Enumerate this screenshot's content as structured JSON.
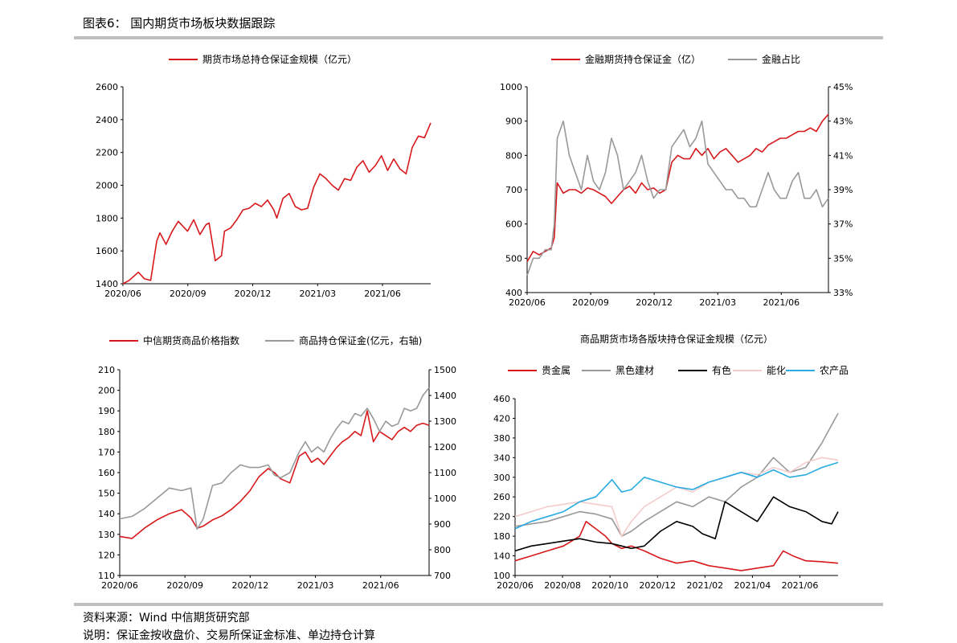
{
  "page": {
    "title": "图表6： 国内期货市场板块数据跟踪",
    "source": "资料来源：Wind 中信期货研究部",
    "note": "说明：保证金按收盘价、交易所保证金标准、单边持仓计算"
  },
  "chart_data": [
    {
      "type": "line",
      "legend_position": "top",
      "x_labels": [
        "2020/06",
        "2020/09",
        "2020/12",
        "2021/03",
        "2021/06"
      ],
      "ylim": [
        1400,
        2600
      ],
      "yticks": [
        "1400",
        "1600",
        "1800",
        "2000",
        "2200",
        "2400",
        "2600"
      ],
      "series": [
        {
          "name": "期货市场总持仓保证金规模（亿元）",
          "color": "#d7191c",
          "x": [
            0,
            0.02,
            0.05,
            0.07,
            0.09,
            0.11,
            0.12,
            0.14,
            0.16,
            0.18,
            0.2,
            0.21,
            0.23,
            0.25,
            0.27,
            0.28,
            0.3,
            0.32,
            0.33,
            0.35,
            0.37,
            0.39,
            0.41,
            0.43,
            0.45,
            0.47,
            0.49,
            0.5,
            0.52,
            0.54,
            0.56,
            0.58,
            0.6,
            0.62,
            0.64,
            0.66,
            0.68,
            0.7,
            0.72,
            0.74,
            0.76,
            0.78,
            0.8,
            0.82,
            0.84,
            0.86,
            0.88,
            0.9,
            0.92,
            0.94,
            0.96,
            0.98,
            1.0
          ],
          "y": [
            1400,
            1420,
            1470,
            1430,
            1420,
            1660,
            1710,
            1640,
            1720,
            1780,
            1740,
            1720,
            1790,
            1700,
            1760,
            1770,
            1540,
            1570,
            1720,
            1740,
            1790,
            1850,
            1860,
            1890,
            1870,
            1910,
            1850,
            1800,
            1920,
            1950,
            1870,
            1850,
            1860,
            1990,
            2070,
            2040,
            2000,
            1970,
            2040,
            2030,
            2110,
            2150,
            2080,
            2120,
            2180,
            2090,
            2160,
            2100,
            2070,
            2230,
            2300,
            2290,
            2380
          ]
        }
      ]
    },
    {
      "type": "line",
      "legend_position": "top",
      "x_labels": [
        "2020/06",
        "2020/09",
        "2020/12",
        "2021/03",
        "2021/06"
      ],
      "ylim": [
        400,
        1000
      ],
      "yticks": [
        "400",
        "500",
        "600",
        "700",
        "800",
        "900",
        "1000"
      ],
      "y2lim": [
        33,
        45
      ],
      "y2ticks": [
        "33%",
        "35%",
        "37%",
        "39%",
        "41%",
        "43%",
        "45%"
      ],
      "series": [
        {
          "name": "金融期货持仓保证金（亿）",
          "color": "#d7191c",
          "axis": "left",
          "x": [
            0,
            0.02,
            0.04,
            0.06,
            0.08,
            0.09,
            0.1,
            0.12,
            0.14,
            0.16,
            0.18,
            0.2,
            0.22,
            0.24,
            0.26,
            0.28,
            0.3,
            0.32,
            0.34,
            0.36,
            0.38,
            0.4,
            0.42,
            0.44,
            0.46,
            0.48,
            0.5,
            0.52,
            0.54,
            0.56,
            0.58,
            0.6,
            0.62,
            0.64,
            0.66,
            0.68,
            0.7,
            0.72,
            0.74,
            0.76,
            0.78,
            0.8,
            0.82,
            0.84,
            0.86,
            0.88,
            0.9,
            0.92,
            0.94,
            0.96,
            0.98,
            1.0
          ],
          "y": [
            490,
            520,
            510,
            520,
            530,
            560,
            720,
            690,
            700,
            700,
            690,
            705,
            700,
            690,
            680,
            660,
            680,
            700,
            710,
            690,
            720,
            700,
            705,
            690,
            700,
            780,
            800,
            790,
            790,
            820,
            800,
            820,
            790,
            810,
            820,
            800,
            780,
            790,
            800,
            820,
            810,
            830,
            840,
            850,
            850,
            860,
            870,
            870,
            880,
            870,
            900,
            920
          ]
        },
        {
          "name": "金融占比",
          "color": "#999999",
          "axis": "right",
          "x": [
            0,
            0.02,
            0.04,
            0.06,
            0.08,
            0.09,
            0.1,
            0.12,
            0.14,
            0.16,
            0.18,
            0.2,
            0.22,
            0.24,
            0.26,
            0.28,
            0.3,
            0.32,
            0.34,
            0.36,
            0.38,
            0.4,
            0.42,
            0.44,
            0.46,
            0.48,
            0.5,
            0.52,
            0.54,
            0.56,
            0.58,
            0.6,
            0.62,
            0.64,
            0.66,
            0.68,
            0.7,
            0.72,
            0.74,
            0.76,
            0.78,
            0.8,
            0.82,
            0.84,
            0.86,
            0.88,
            0.9,
            0.92,
            0.94,
            0.96,
            0.98,
            1.0
          ],
          "y": [
            34,
            35,
            35,
            35.5,
            35.5,
            37,
            42,
            43,
            41,
            40,
            39,
            41,
            39.5,
            39,
            40,
            42,
            41,
            39,
            39.5,
            40,
            41,
            39.5,
            38.5,
            39,
            39,
            41.5,
            42,
            42.5,
            41.5,
            42,
            43,
            40.5,
            40,
            39.5,
            39,
            39,
            38.5,
            38.5,
            38,
            38,
            39,
            40,
            39,
            38.5,
            38.5,
            39.5,
            40,
            38.5,
            38.5,
            39,
            38,
            38.5
          ]
        }
      ]
    },
    {
      "type": "line",
      "legend_position": "top",
      "x_labels": [
        "2020/06",
        "2020/09",
        "2020/12",
        "2021/03",
        "2021/06"
      ],
      "ylim": [
        110,
        210
      ],
      "yticks": [
        "110",
        "120",
        "130",
        "140",
        "150",
        "160",
        "170",
        "180",
        "190",
        "200",
        "210"
      ],
      "y2lim": [
        700,
        1500
      ],
      "y2ticks": [
        "700",
        "800",
        "900",
        "1000",
        "1100",
        "1200",
        "1300",
        "1400",
        "1500"
      ],
      "series": [
        {
          "name": "中信期货商品价格指数",
          "color": "#d7191c",
          "axis": "left",
          "x": [
            0,
            0.04,
            0.08,
            0.12,
            0.16,
            0.2,
            0.23,
            0.25,
            0.27,
            0.3,
            0.33,
            0.36,
            0.39,
            0.42,
            0.45,
            0.48,
            0.5,
            0.52,
            0.55,
            0.58,
            0.6,
            0.62,
            0.64,
            0.66,
            0.68,
            0.7,
            0.72,
            0.74,
            0.76,
            0.78,
            0.8,
            0.82,
            0.84,
            0.86,
            0.88,
            0.9,
            0.92,
            0.94,
            0.96,
            0.98,
            1.0
          ],
          "y": [
            129,
            128,
            133,
            137,
            140,
            142,
            138,
            133,
            134,
            137,
            139,
            142,
            146,
            151,
            158,
            162,
            160,
            157,
            155,
            168,
            170,
            165,
            167,
            164,
            168,
            172,
            175,
            177,
            180,
            178,
            190,
            175,
            180,
            178,
            176,
            180,
            182,
            180,
            183,
            184,
            183
          ]
        },
        {
          "name": "商品持仓保证金(亿元，右轴)",
          "color": "#999999",
          "axis": "right",
          "x": [
            0,
            0.04,
            0.08,
            0.12,
            0.16,
            0.2,
            0.23,
            0.25,
            0.27,
            0.3,
            0.33,
            0.36,
            0.39,
            0.42,
            0.45,
            0.48,
            0.5,
            0.52,
            0.55,
            0.58,
            0.6,
            0.62,
            0.64,
            0.66,
            0.68,
            0.7,
            0.72,
            0.74,
            0.76,
            0.78,
            0.8,
            0.82,
            0.84,
            0.86,
            0.88,
            0.9,
            0.92,
            0.94,
            0.96,
            0.98,
            1.0
          ],
          "y": [
            920,
            930,
            960,
            1000,
            1040,
            1030,
            1040,
            880,
            920,
            1050,
            1060,
            1100,
            1130,
            1120,
            1120,
            1130,
            1090,
            1080,
            1100,
            1180,
            1220,
            1180,
            1200,
            1180,
            1230,
            1270,
            1300,
            1290,
            1330,
            1320,
            1350,
            1310,
            1260,
            1300,
            1280,
            1290,
            1350,
            1340,
            1350,
            1400,
            1430
          ]
        }
      ]
    },
    {
      "type": "line",
      "title": "商品期货市场各版块持仓保证金规模（亿元）",
      "legend_position": "top",
      "x_labels": [
        "2020/06",
        "2020/08",
        "2020/10",
        "2020/12",
        "2021/02",
        "2021/04",
        "2021/06"
      ],
      "ylim": [
        100,
        460
      ],
      "yticks": [
        "100",
        "140",
        "180",
        "220",
        "260",
        "300",
        "340",
        "380",
        "420",
        "460"
      ],
      "series": [
        {
          "name": "贵金属",
          "color": "#d7191c",
          "x": [
            0,
            0.05,
            0.1,
            0.15,
            0.2,
            0.22,
            0.25,
            0.28,
            0.3,
            0.33,
            0.36,
            0.4,
            0.45,
            0.5,
            0.55,
            0.6,
            0.65,
            0.7,
            0.75,
            0.8,
            0.83,
            0.86,
            0.9,
            0.95,
            1.0
          ],
          "y": [
            130,
            140,
            150,
            160,
            180,
            210,
            195,
            180,
            165,
            155,
            160,
            150,
            135,
            125,
            130,
            120,
            115,
            110,
            115,
            120,
            150,
            140,
            130,
            128,
            125
          ]
        },
        {
          "name": "黑色建材",
          "color": "#999999",
          "x": [
            0,
            0.05,
            0.1,
            0.15,
            0.2,
            0.25,
            0.3,
            0.33,
            0.36,
            0.4,
            0.45,
            0.5,
            0.55,
            0.6,
            0.65,
            0.7,
            0.75,
            0.8,
            0.85,
            0.9,
            0.95,
            1.0
          ],
          "y": [
            200,
            205,
            210,
            220,
            230,
            225,
            215,
            180,
            190,
            210,
            230,
            250,
            240,
            260,
            250,
            280,
            300,
            340,
            310,
            320,
            370,
            430
          ]
        },
        {
          "name": "有色",
          "color": "#000000",
          "x": [
            0,
            0.05,
            0.1,
            0.15,
            0.2,
            0.25,
            0.3,
            0.33,
            0.36,
            0.4,
            0.45,
            0.5,
            0.55,
            0.58,
            0.62,
            0.65,
            0.7,
            0.75,
            0.8,
            0.85,
            0.9,
            0.95,
            0.98,
            1.0
          ],
          "y": [
            150,
            160,
            165,
            170,
            175,
            168,
            165,
            160,
            155,
            160,
            190,
            210,
            200,
            185,
            175,
            250,
            230,
            210,
            260,
            240,
            230,
            210,
            205,
            230
          ]
        },
        {
          "name": "能化",
          "color": "#f4cccc",
          "x": [
            0,
            0.05,
            0.1,
            0.15,
            0.2,
            0.25,
            0.3,
            0.33,
            0.36,
            0.4,
            0.45,
            0.5,
            0.55,
            0.6,
            0.65,
            0.7,
            0.75,
            0.8,
            0.85,
            0.9,
            0.95,
            1.0
          ],
          "y": [
            220,
            230,
            240,
            245,
            250,
            245,
            240,
            180,
            210,
            240,
            260,
            280,
            270,
            290,
            300,
            310,
            305,
            320,
            310,
            330,
            340,
            335
          ]
        },
        {
          "name": "农产品",
          "color": "#29abe2",
          "x": [
            0,
            0.05,
            0.1,
            0.15,
            0.2,
            0.25,
            0.3,
            0.33,
            0.36,
            0.4,
            0.45,
            0.5,
            0.55,
            0.6,
            0.65,
            0.7,
            0.75,
            0.8,
            0.85,
            0.9,
            0.95,
            1.0
          ],
          "y": [
            195,
            210,
            220,
            230,
            250,
            260,
            295,
            270,
            275,
            300,
            290,
            280,
            275,
            290,
            300,
            310,
            300,
            315,
            300,
            305,
            320,
            330
          ]
        }
      ]
    }
  ]
}
